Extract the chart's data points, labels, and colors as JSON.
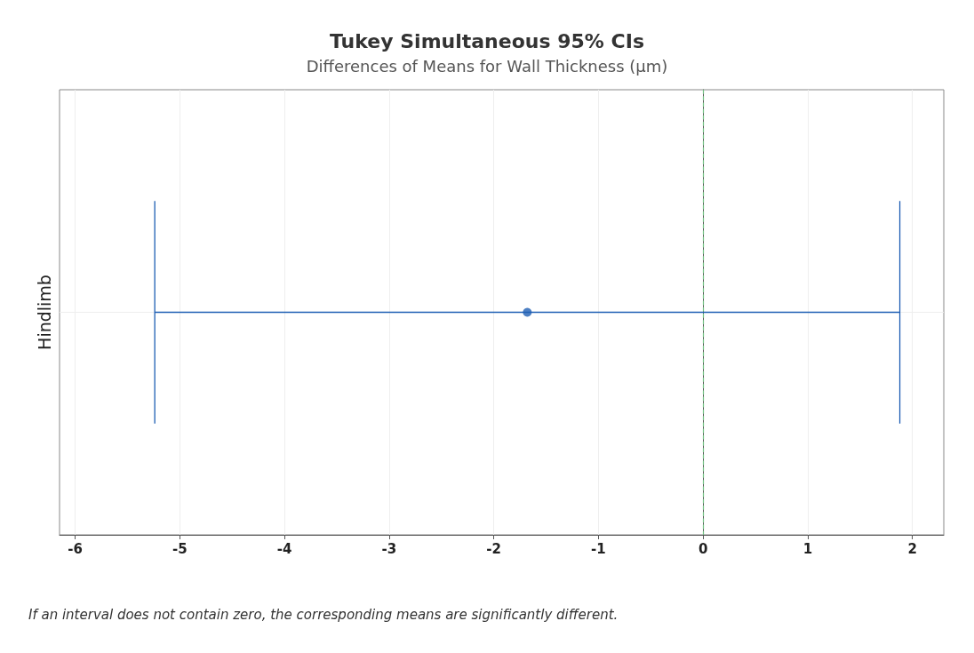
{
  "chart_data": {
    "type": "scatter",
    "orientation": "horizontal",
    "title": "Tukey Simultaneous 95% CIs",
    "subtitle": "Differences of Means for Wall Thickness (µm)",
    "categories": [
      "Hindlimb"
    ],
    "series": [
      {
        "color": "#1f5fb4",
        "values": [
          -1.68
        ],
        "errors": [
          [
            -5.24,
            1.88
          ]
        ]
      }
    ],
    "xlim": [
      -6.15,
      2.3
    ],
    "xticks": [
      -6,
      -5,
      -4,
      -3,
      -2,
      -1,
      0,
      1,
      2
    ],
    "ref_lines": [
      {
        "axis": "x",
        "value": 0,
        "color": "#6fbf7f",
        "line_style": "dashed"
      }
    ],
    "grid": true,
    "marker": "circle",
    "annotations": [
      "If an interval does not contain zero, the corresponding means are significantly different."
    ]
  }
}
